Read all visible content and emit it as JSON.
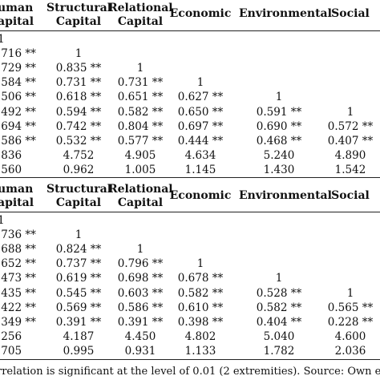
{
  "headers": {
    "human": [
      "uman",
      "apital"
    ],
    "structural": [
      "Structural",
      "Capital"
    ],
    "relational": [
      "Relational",
      "Capital"
    ],
    "economic": "Economic",
    "environmental": "Environmental",
    "social": "Social"
  },
  "table1": [
    [
      "1",
      "",
      "",
      "",
      "",
      ""
    ],
    [
      ".716 **",
      "1",
      "",
      "",
      "",
      ""
    ],
    [
      ".729 **",
      "0.835 **",
      "1",
      "",
      "",
      ""
    ],
    [
      ".584 **",
      "0.731 **",
      "0.731 **",
      "1",
      "",
      ""
    ],
    [
      ".506 **",
      "0.618 **",
      "0.651 **",
      "0.627 **",
      "1",
      ""
    ],
    [
      ".492 **",
      "0.594 **",
      "0.582 **",
      "0.650 **",
      "0.591 **",
      "1"
    ],
    [
      ".694 **",
      "0.742 **",
      "0.804 **",
      "0.697 **",
      "0.690 **",
      "0.572 **"
    ],
    [
      ".586 **",
      "0.532 **",
      "0.577 **",
      "0.444 **",
      "0.468 **",
      "0.407 **"
    ],
    [
      ".836",
      "4.752",
      "4.905",
      "4.634",
      "5.240",
      "4.890"
    ],
    [
      ".560",
      "0.962",
      "1.005",
      "1.145",
      "1.430",
      "1.542"
    ]
  ],
  "table2": [
    [
      "1",
      "",
      "",
      "",
      "",
      ""
    ],
    [
      ".736 **",
      "1",
      "",
      "",
      "",
      ""
    ],
    [
      ".688 **",
      "0.824 **",
      "1",
      "",
      "",
      ""
    ],
    [
      ".652 **",
      "0.737 **",
      "0.796 **",
      "1",
      "",
      ""
    ],
    [
      ".473 **",
      "0.619 **",
      "0.698 **",
      "0.678 **",
      "1",
      ""
    ],
    [
      ".435 **",
      "0.545 **",
      "0.603 **",
      "0.582 **",
      "0.528 **",
      "1"
    ],
    [
      ".422 **",
      "0.569 **",
      "0.586 **",
      "0.610 **",
      "0.582 **",
      "0.565 **"
    ],
    [
      ".349 **",
      "0.391 **",
      "0.391 **",
      "0.398 **",
      "0.404 **",
      "0.228 **"
    ],
    [
      ".256",
      "4.187",
      "4.450",
      "4.802",
      "5.040",
      "4.600"
    ],
    [
      ".705",
      "0.995",
      "0.931",
      "1.133",
      "1.782",
      "2.036"
    ]
  ],
  "footnote": "rrelation is significant at the level of 0.01 (2 extremities). Source: Own el"
}
